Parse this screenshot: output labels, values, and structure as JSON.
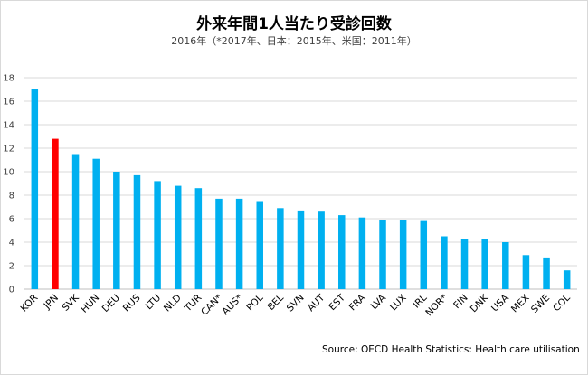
{
  "chart_data": {
    "type": "bar",
    "title": "外来年間1人当たり受診回数",
    "subtitle": "2016年（*2017年、日本：2015年、米国：2011年）",
    "source": "Source: OECD Health Statistics: Health care utilisation",
    "categories": [
      "KOR",
      "JPN",
      "SVK",
      "HUN",
      "DEU",
      "RUS",
      "LTU",
      "NLD",
      "TUR",
      "CAN*",
      "AUS*",
      "POL",
      "BEL",
      "SVN",
      "AUT",
      "EST",
      "FRA",
      "LVA",
      "LUX",
      "IRL",
      "NOR*",
      "FIN",
      "DNK",
      "USA",
      "MEX",
      "SWE",
      "COL"
    ],
    "values": [
      17.0,
      12.8,
      11.5,
      11.1,
      10.0,
      9.7,
      9.2,
      8.8,
      8.6,
      7.7,
      7.7,
      7.5,
      6.9,
      6.7,
      6.6,
      6.3,
      6.1,
      5.9,
      5.9,
      5.8,
      4.5,
      4.3,
      4.3,
      4.0,
      2.9,
      2.7,
      1.6
    ],
    "highlight": "JPN",
    "ylim": [
      0,
      18
    ],
    "yticks": [
      0,
      2,
      4,
      6,
      8,
      10,
      12,
      14,
      16,
      18
    ],
    "grid": true,
    "colors": {
      "bar": "#00b0f0",
      "highlight": "#ff0000",
      "grid": "#d9d9d9"
    }
  }
}
